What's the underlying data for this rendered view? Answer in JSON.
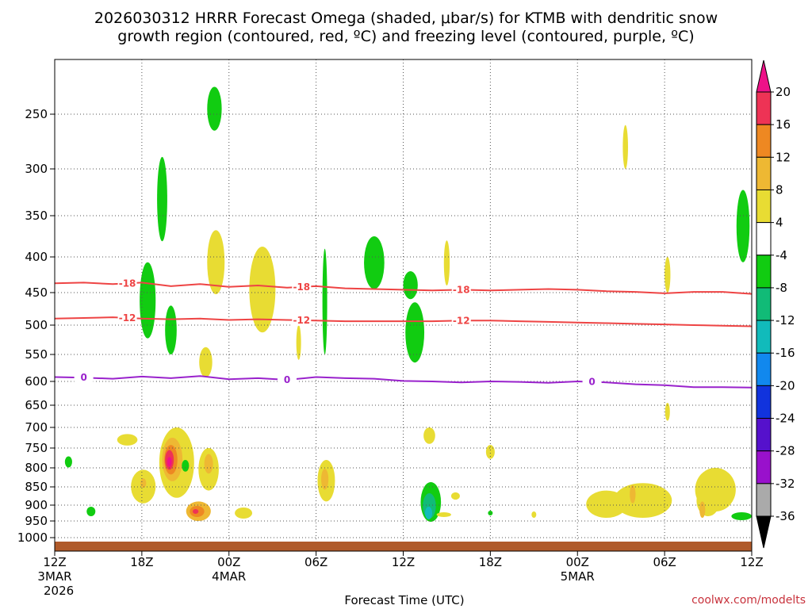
{
  "colors": {
    "dendritic_contour": "#ee4444",
    "freezing_contour": "#9922cc",
    "ground": "#b05a2a",
    "grid": "#555555",
    "credit": "#c8323c"
  },
  "chart_data": {
    "type": "contour_timeheight",
    "title_line1": "2026030312 HRRR Forecast Omega (shaded, μbar/s) for KTMB with dendritic snow",
    "title_line2": "growth region (contoured, red, ºC) and freezing level (contoured, purple, ºC)",
    "xlabel": "Forecast Time (UTC)",
    "credit": "coolwx.com/modelts",
    "x_range_hours": [
      0,
      48
    ],
    "x_ticks": [
      {
        "h": 0,
        "label": "12Z",
        "date": "3MAR",
        "year": "2026"
      },
      {
        "h": 6,
        "label": "18Z"
      },
      {
        "h": 12,
        "label": "00Z",
        "date": "4MAR"
      },
      {
        "h": 18,
        "label": "06Z"
      },
      {
        "h": 24,
        "label": "12Z"
      },
      {
        "h": 30,
        "label": "18Z"
      },
      {
        "h": 36,
        "label": "00Z",
        "date": "5MAR"
      },
      {
        "h": 42,
        "label": "06Z"
      },
      {
        "h": 48,
        "label": "12Z"
      }
    ],
    "y_axis_mb": [
      200,
      1025
    ],
    "y_ticks": [
      "250",
      "300",
      "350",
      "400",
      "450",
      "500",
      "550",
      "600",
      "650",
      "700",
      "750",
      "800",
      "850",
      "900",
      "950",
      "1000"
    ],
    "colorbar_labels": [
      "20",
      "16",
      "12",
      "8",
      "4",
      "-4",
      "-8",
      "-12",
      "-16",
      "-20",
      "-24",
      "-28",
      "-32",
      "-36"
    ],
    "colorbar_colors": [
      "#ee3355",
      "#ee8822",
      "#eeb833",
      "#e8dc33",
      "#ffffff",
      "#11cc11",
      "#11bb77",
      "#11bbbb",
      "#1188ee",
      "#1133dd",
      "#5511cc",
      "#9911cc",
      "#aaaaaa"
    ],
    "isotherms": [
      {
        "name": "-18",
        "color": "dendritic",
        "label": "-18",
        "points": [
          [
            0,
            437
          ],
          [
            2,
            436
          ],
          [
            4,
            438
          ],
          [
            6,
            436
          ],
          [
            8,
            441
          ],
          [
            10,
            438
          ],
          [
            12,
            442
          ],
          [
            14,
            440
          ],
          [
            16,
            443
          ],
          [
            18,
            441
          ],
          [
            20,
            444
          ],
          [
            22,
            445
          ],
          [
            24,
            446
          ],
          [
            26,
            447
          ],
          [
            28,
            446
          ],
          [
            30,
            447
          ],
          [
            32,
            446
          ],
          [
            34,
            445
          ],
          [
            36,
            446
          ],
          [
            38,
            448
          ],
          [
            40,
            449
          ],
          [
            42,
            451
          ],
          [
            44,
            449
          ],
          [
            46,
            449
          ],
          [
            48,
            452
          ]
        ],
        "label_hours": [
          5,
          17,
          28
        ]
      },
      {
        "name": "-12",
        "color": "dendritic",
        "label": "-12",
        "points": [
          [
            0,
            490
          ],
          [
            2,
            489
          ],
          [
            4,
            488
          ],
          [
            6,
            490
          ],
          [
            8,
            491
          ],
          [
            10,
            490
          ],
          [
            12,
            492
          ],
          [
            14,
            491
          ],
          [
            16,
            492
          ],
          [
            18,
            493
          ],
          [
            20,
            494
          ],
          [
            22,
            494
          ],
          [
            24,
            494
          ],
          [
            26,
            494
          ],
          [
            28,
            493
          ],
          [
            30,
            493
          ],
          [
            32,
            494
          ],
          [
            34,
            495
          ],
          [
            36,
            496
          ],
          [
            38,
            497
          ],
          [
            40,
            498
          ],
          [
            42,
            499
          ],
          [
            44,
            500
          ],
          [
            46,
            501
          ],
          [
            48,
            502
          ]
        ],
        "label_hours": [
          5,
          17,
          28
        ]
      },
      {
        "name": "0",
        "color": "freezing",
        "label": "0",
        "points": [
          [
            0,
            592
          ],
          [
            2,
            593
          ],
          [
            4,
            595
          ],
          [
            6,
            591
          ],
          [
            8,
            594
          ],
          [
            10,
            590
          ],
          [
            12,
            596
          ],
          [
            14,
            594
          ],
          [
            16,
            597
          ],
          [
            18,
            592
          ],
          [
            20,
            594
          ],
          [
            22,
            595
          ],
          [
            24,
            599
          ],
          [
            26,
            600
          ],
          [
            28,
            602
          ],
          [
            30,
            600
          ],
          [
            32,
            601
          ],
          [
            34,
            603
          ],
          [
            36,
            600
          ],
          [
            38,
            602
          ],
          [
            40,
            606
          ],
          [
            42,
            608
          ],
          [
            44,
            612
          ],
          [
            46,
            612
          ],
          [
            48,
            613
          ]
        ],
        "label_hours": [
          2,
          16,
          37
        ]
      }
    ],
    "omega_regions": [
      {
        "level": "-8",
        "h": 0.95,
        "p": 785,
        "rh": 0.25,
        "rp": 28
      },
      {
        "level": "-8",
        "h": 2.5,
        "p": 920,
        "rh": 0.3,
        "rp": 30
      },
      {
        "level": "4",
        "h": 5.0,
        "p": 730,
        "rh": 0.7,
        "rp": 28
      },
      {
        "level": "4",
        "h": 6.1,
        "p": 850,
        "rh": 0.85,
        "rp": 90
      },
      {
        "level": "8",
        "h": 6.1,
        "p": 840,
        "rh": 0.2,
        "rp": 25
      },
      {
        "level": "-8",
        "h": 6.4,
        "p": 465,
        "rh": 0.55,
        "rp": 115
      },
      {
        "level": "-8",
        "h": 7.4,
        "p": 335,
        "rh": 0.35,
        "rp": 92
      },
      {
        "level": "-8",
        "h": 8.0,
        "p": 510,
        "rh": 0.4,
        "rp": 80
      },
      {
        "level": "4",
        "h": 8.4,
        "p": 790,
        "rh": 1.2,
        "rp": 180
      },
      {
        "level": "8",
        "h": 8.1,
        "p": 780,
        "rh": 0.7,
        "rp": 110
      },
      {
        "level": "12",
        "h": 8.0,
        "p": 780,
        "rh": 0.45,
        "rp": 75
      },
      {
        "level": "16",
        "h": 7.9,
        "p": 780,
        "rh": 0.3,
        "rp": 50
      },
      {
        "level": "20",
        "h": 7.9,
        "p": 785,
        "rh": 0.15,
        "rp": 25
      },
      {
        "level": "4",
        "h": 10.6,
        "p": 805,
        "rh": 0.7,
        "rp": 110
      },
      {
        "level": "8",
        "h": 10.6,
        "p": 790,
        "rh": 0.3,
        "rp": 50
      },
      {
        "level": "8",
        "h": 9.9,
        "p": 920,
        "rh": 0.85,
        "rp": 60
      },
      {
        "level": "12",
        "h": 9.8,
        "p": 920,
        "rh": 0.5,
        "rp": 35
      },
      {
        "level": "16",
        "h": 9.7,
        "p": 920,
        "rh": 0.2,
        "rp": 15
      },
      {
        "level": "-8",
        "h": 9.0,
        "p": 795,
        "rh": 0.25,
        "rp": 30
      },
      {
        "level": "4",
        "h": 10.4,
        "p": 565,
        "rh": 0.45,
        "rp": 55
      },
      {
        "level": "-8",
        "h": 11.0,
        "p": 245,
        "rh": 0.5,
        "rp": 40
      },
      {
        "level": "4",
        "h": 11.1,
        "p": 410,
        "rh": 0.6,
        "rp": 85
      },
      {
        "level": "4",
        "h": 14.3,
        "p": 450,
        "rh": 0.9,
        "rp": 125
      },
      {
        "level": "4",
        "h": 13.0,
        "p": 925,
        "rh": 0.6,
        "rp": 35
      },
      {
        "level": "4",
        "h": 16.8,
        "p": 530,
        "rh": 0.15,
        "rp": 60
      },
      {
        "level": "-8",
        "h": 18.6,
        "p": 470,
        "rh": 0.15,
        "rp": 160
      },
      {
        "level": "4",
        "h": 18.7,
        "p": 835,
        "rh": 0.6,
        "rp": 110
      },
      {
        "level": "8",
        "h": 18.6,
        "p": 830,
        "rh": 0.25,
        "rp": 55
      },
      {
        "level": "-8",
        "h": 22.0,
        "p": 410,
        "rh": 0.7,
        "rp": 70
      },
      {
        "level": "-8",
        "h": 24.5,
        "p": 440,
        "rh": 0.5,
        "rp": 40
      },
      {
        "level": "-8",
        "h": 24.8,
        "p": 515,
        "rh": 0.65,
        "rp": 100
      },
      {
        "level": "4",
        "h": 25.8,
        "p": 720,
        "rh": 0.4,
        "rp": 40
      },
      {
        "level": "-8",
        "h": 25.9,
        "p": 895,
        "rh": 0.7,
        "rp": 115
      },
      {
        "level": "-12",
        "h": 25.8,
        "p": 905,
        "rh": 0.45,
        "rp": 75
      },
      {
        "level": "-16",
        "h": 25.75,
        "p": 925,
        "rh": 0.25,
        "rp": 40
      },
      {
        "level": "4",
        "h": 26.8,
        "p": 930,
        "rh": 0.5,
        "rp": 15
      },
      {
        "level": "4",
        "h": 27.6,
        "p": 875,
        "rh": 0.3,
        "rp": 20
      },
      {
        "level": "4",
        "h": 27.0,
        "p": 410,
        "rh": 0.2,
        "rp": 60
      },
      {
        "level": "4",
        "h": 30.0,
        "p": 760,
        "rh": 0.3,
        "rp": 35
      },
      {
        "level": "-8",
        "h": 30.0,
        "p": 925,
        "rh": 0.12,
        "rp": 15
      },
      {
        "level": "4",
        "h": 33.0,
        "p": 930,
        "rh": 0.15,
        "rp": 20
      },
      {
        "level": "4",
        "h": 39.3,
        "p": 280,
        "rh": 0.18,
        "rp": 40
      },
      {
        "level": "4",
        "h": 40.5,
        "p": 890,
        "rh": 2.0,
        "rp": 100
      },
      {
        "level": "4",
        "h": 38.0,
        "p": 900,
        "rh": 1.4,
        "rp": 80
      },
      {
        "level": "8",
        "h": 39.8,
        "p": 870,
        "rh": 0.2,
        "rp": 50
      },
      {
        "level": "4",
        "h": 42.2,
        "p": 425,
        "rh": 0.2,
        "rp": 50
      },
      {
        "level": "4",
        "h": 42.2,
        "p": 665,
        "rh": 0.15,
        "rp": 40
      },
      {
        "level": "4",
        "h": 45.5,
        "p": 860,
        "rh": 1.4,
        "rp": 120
      },
      {
        "level": "4",
        "h": 45.0,
        "p": 890,
        "rh": 0.8,
        "rp": 90
      },
      {
        "level": "8",
        "h": 44.6,
        "p": 915,
        "rh": 0.2,
        "rp": 50
      },
      {
        "level": "-8",
        "h": 47.3,
        "p": 935,
        "rh": 0.7,
        "rp": 25
      },
      {
        "level": "-8",
        "h": 47.4,
        "p": 365,
        "rh": 0.45,
        "rp": 85
      }
    ]
  }
}
